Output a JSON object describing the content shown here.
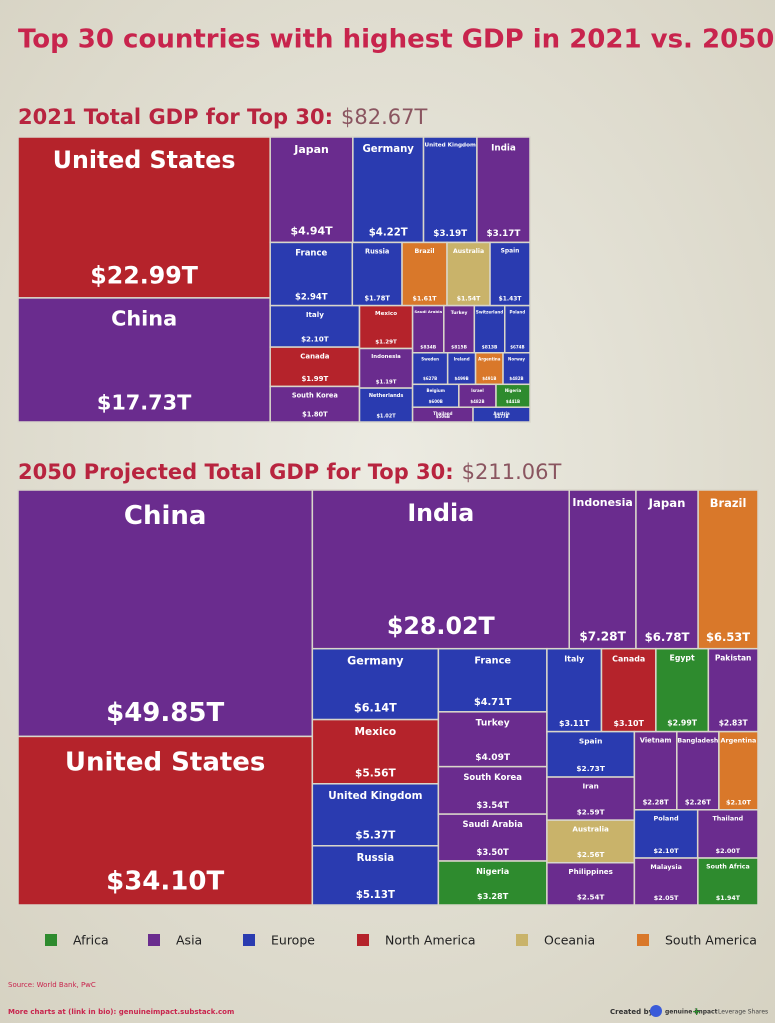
{
  "title": "Top 30 countries with highest GDP in 2021 vs. 2050",
  "chart_data": [
    {
      "type": "treemap",
      "title": "2021 Total GDP for Top 30:",
      "total": 82.67,
      "total_label": "$82.67T",
      "items": [
        {
          "name": "United States",
          "value": 22.99,
          "value_label": "$22.99T",
          "color": "#b5232b"
        },
        {
          "name": "China",
          "value": 17.73,
          "value_label": "$17.73T",
          "color": "#6a2c8e"
        },
        {
          "name": "Japan",
          "value": 4.94,
          "value_label": "$4.94T",
          "color": "#6a2c8e"
        },
        {
          "name": "Germany",
          "value": 4.22,
          "value_label": "$4.22T",
          "color": "#2a3bb0"
        },
        {
          "name": "United Kingdom",
          "value": 3.19,
          "value_label": "$3.19T",
          "color": "#2a3bb0"
        },
        {
          "name": "India",
          "value": 3.17,
          "value_label": "$3.17T",
          "color": "#6a2c8e"
        },
        {
          "name": "France",
          "value": 2.94,
          "value_label": "$2.94T",
          "color": "#2a3bb0"
        },
        {
          "name": "Russia",
          "value": 1.78,
          "value_label": "$1.78T",
          "color": "#2a3bb0"
        },
        {
          "name": "Brazil",
          "value": 1.61,
          "value_label": "$1.61T",
          "color": "#d9782a"
        },
        {
          "name": "Australia",
          "value": 1.54,
          "value_label": "$1.54T",
          "color": "#c9b36a"
        },
        {
          "name": "Spain",
          "value": 1.43,
          "value_label": "$1.43T",
          "color": "#2a3bb0"
        },
        {
          "name": "Italy",
          "value": 2.1,
          "value_label": "$2.10T",
          "color": "#2a3bb0"
        },
        {
          "name": "Mexico",
          "value": 1.29,
          "value_label": "$1.29T",
          "color": "#b5232b"
        },
        {
          "name": "Saudi Arabia",
          "value": 0.834,
          "value_label": "$834B",
          "color": "#6a2c8e"
        },
        {
          "name": "Turkey",
          "value": 0.815,
          "value_label": "$815B",
          "color": "#6a2c8e"
        },
        {
          "name": "Switzerland",
          "value": 0.813,
          "value_label": "$813B",
          "color": "#2a3bb0"
        },
        {
          "name": "Poland",
          "value": 0.674,
          "value_label": "$674B",
          "color": "#2a3bb0"
        },
        {
          "name": "Canada",
          "value": 1.99,
          "value_label": "$1.99T",
          "color": "#b5232b"
        },
        {
          "name": "Indonesia",
          "value": 1.19,
          "value_label": "$1.19T",
          "color": "#6a2c8e"
        },
        {
          "name": "Sweden",
          "value": 0.627,
          "value_label": "$627B",
          "color": "#2a3bb0"
        },
        {
          "name": "Ireland",
          "value": 0.499,
          "value_label": "$499B",
          "color": "#2a3bb0"
        },
        {
          "name": "Argentina",
          "value": 0.491,
          "value_label": "$491B",
          "color": "#d9782a"
        },
        {
          "name": "Norway",
          "value": 0.482,
          "value_label": "$482B",
          "color": "#2a3bb0"
        },
        {
          "name": "Belgium",
          "value": 0.6,
          "value_label": "$600B",
          "color": "#2a3bb0"
        },
        {
          "name": "Israel",
          "value": 0.482,
          "value_label": "$482B",
          "color": "#6a2c8e"
        },
        {
          "name": "Nigeria",
          "value": 0.441,
          "value_label": "$441B",
          "color": "#2e8b2e"
        },
        {
          "name": "South Korea",
          "value": 1.8,
          "value_label": "$1.80T",
          "color": "#6a2c8e"
        },
        {
          "name": "Netherlands",
          "value": 1.02,
          "value_label": "$1.02T",
          "color": "#2a3bb0"
        },
        {
          "name": "Thailand",
          "value": 0.506,
          "value_label": "$506B",
          "color": "#6a2c8e"
        },
        {
          "name": "Austria",
          "value": 0.477,
          "value_label": "$477B",
          "color": "#2a3bb0"
        }
      ]
    },
    {
      "type": "treemap",
      "title": "2050 Projected Total GDP for Top 30:",
      "total": 211.06,
      "total_label": "$211.06T",
      "items": [
        {
          "name": "China",
          "value": 49.85,
          "value_label": "$49.85T",
          "color": "#6a2c8e"
        },
        {
          "name": "United States",
          "value": 34.1,
          "value_label": "$34.10T",
          "color": "#b5232b"
        },
        {
          "name": "India",
          "value": 28.02,
          "value_label": "$28.02T",
          "color": "#6a2c8e"
        },
        {
          "name": "Indonesia",
          "value": 7.28,
          "value_label": "$7.28T",
          "color": "#6a2c8e"
        },
        {
          "name": "Japan",
          "value": 6.78,
          "value_label": "$6.78T",
          "color": "#6a2c8e"
        },
        {
          "name": "Brazil",
          "value": 6.53,
          "value_label": "$6.53T",
          "color": "#d9782a"
        },
        {
          "name": "Germany",
          "value": 6.14,
          "value_label": "$6.14T",
          "color": "#2a3bb0"
        },
        {
          "name": "France",
          "value": 4.71,
          "value_label": "$4.71T",
          "color": "#2a3bb0"
        },
        {
          "name": "Italy",
          "value": 3.11,
          "value_label": "$3.11T",
          "color": "#2a3bb0"
        },
        {
          "name": "Canada",
          "value": 3.1,
          "value_label": "$3.10T",
          "color": "#b5232b"
        },
        {
          "name": "Egypt",
          "value": 2.99,
          "value_label": "$2.99T",
          "color": "#2e8b2e"
        },
        {
          "name": "Pakistan",
          "value": 2.83,
          "value_label": "$2.83T",
          "color": "#6a2c8e"
        },
        {
          "name": "Mexico",
          "value": 5.56,
          "value_label": "$5.56T",
          "color": "#b5232b"
        },
        {
          "name": "Turkey",
          "value": 4.09,
          "value_label": "$4.09T",
          "color": "#6a2c8e"
        },
        {
          "name": "Spain",
          "value": 2.73,
          "value_label": "$2.73T",
          "color": "#2a3bb0"
        },
        {
          "name": "Vietnam",
          "value": 2.28,
          "value_label": "$2.28T",
          "color": "#6a2c8e"
        },
        {
          "name": "Bangladesh",
          "value": 2.26,
          "value_label": "$2.26T",
          "color": "#6a2c8e"
        },
        {
          "name": "Argentina",
          "value": 2.1,
          "value_label": "$2.10T",
          "color": "#d9782a"
        },
        {
          "name": "United Kingdom",
          "value": 5.37,
          "value_label": "$5.37T",
          "color": "#2a3bb0"
        },
        {
          "name": "South Korea",
          "value": 3.54,
          "value_label": "$3.54T",
          "color": "#6a2c8e"
        },
        {
          "name": "Iran",
          "value": 2.59,
          "value_label": "$2.59T",
          "color": "#6a2c8e"
        },
        {
          "name": "Saudi Arabia",
          "value": 3.5,
          "value_label": "$3.50T",
          "color": "#6a2c8e"
        },
        {
          "name": "Australia",
          "value": 2.56,
          "value_label": "$2.56T",
          "color": "#c9b36a"
        },
        {
          "name": "Poland",
          "value": 2.1,
          "value_label": "$2.10T",
          "color": "#2a3bb0"
        },
        {
          "name": "Thailand",
          "value": 2.0,
          "value_label": "$2.00T",
          "color": "#6a2c8e"
        },
        {
          "name": "Russia",
          "value": 5.13,
          "value_label": "$5.13T",
          "color": "#2a3bb0"
        },
        {
          "name": "Nigeria",
          "value": 3.28,
          "value_label": "$3.28T",
          "color": "#2e8b2e"
        },
        {
          "name": "Philippines",
          "value": 2.54,
          "value_label": "$2.54T",
          "color": "#6a2c8e"
        },
        {
          "name": "Malaysia",
          "value": 2.05,
          "value_label": "$2.05T",
          "color": "#6a2c8e"
        },
        {
          "name": "South Africa",
          "value": 1.94,
          "value_label": "$1.94T",
          "color": "#2e8b2e"
        }
      ]
    }
  ],
  "legend": [
    {
      "name": "Africa",
      "color": "#2e8b2e"
    },
    {
      "name": "Asia",
      "color": "#6a2c8e"
    },
    {
      "name": "Europe",
      "color": "#2a3bb0"
    },
    {
      "name": "North America",
      "color": "#b5232b"
    },
    {
      "name": "Oceania",
      "color": "#c9b36a"
    },
    {
      "name": "South America",
      "color": "#d9782a"
    }
  ],
  "footer": {
    "source": "Source: World Bank, PwC",
    "more": "More charts at (link in bio): genuineimpact.substack.com",
    "created_by": "Created by",
    "brand": "genuine impact",
    "plus": "+",
    "partner": "Leverage Shares"
  }
}
